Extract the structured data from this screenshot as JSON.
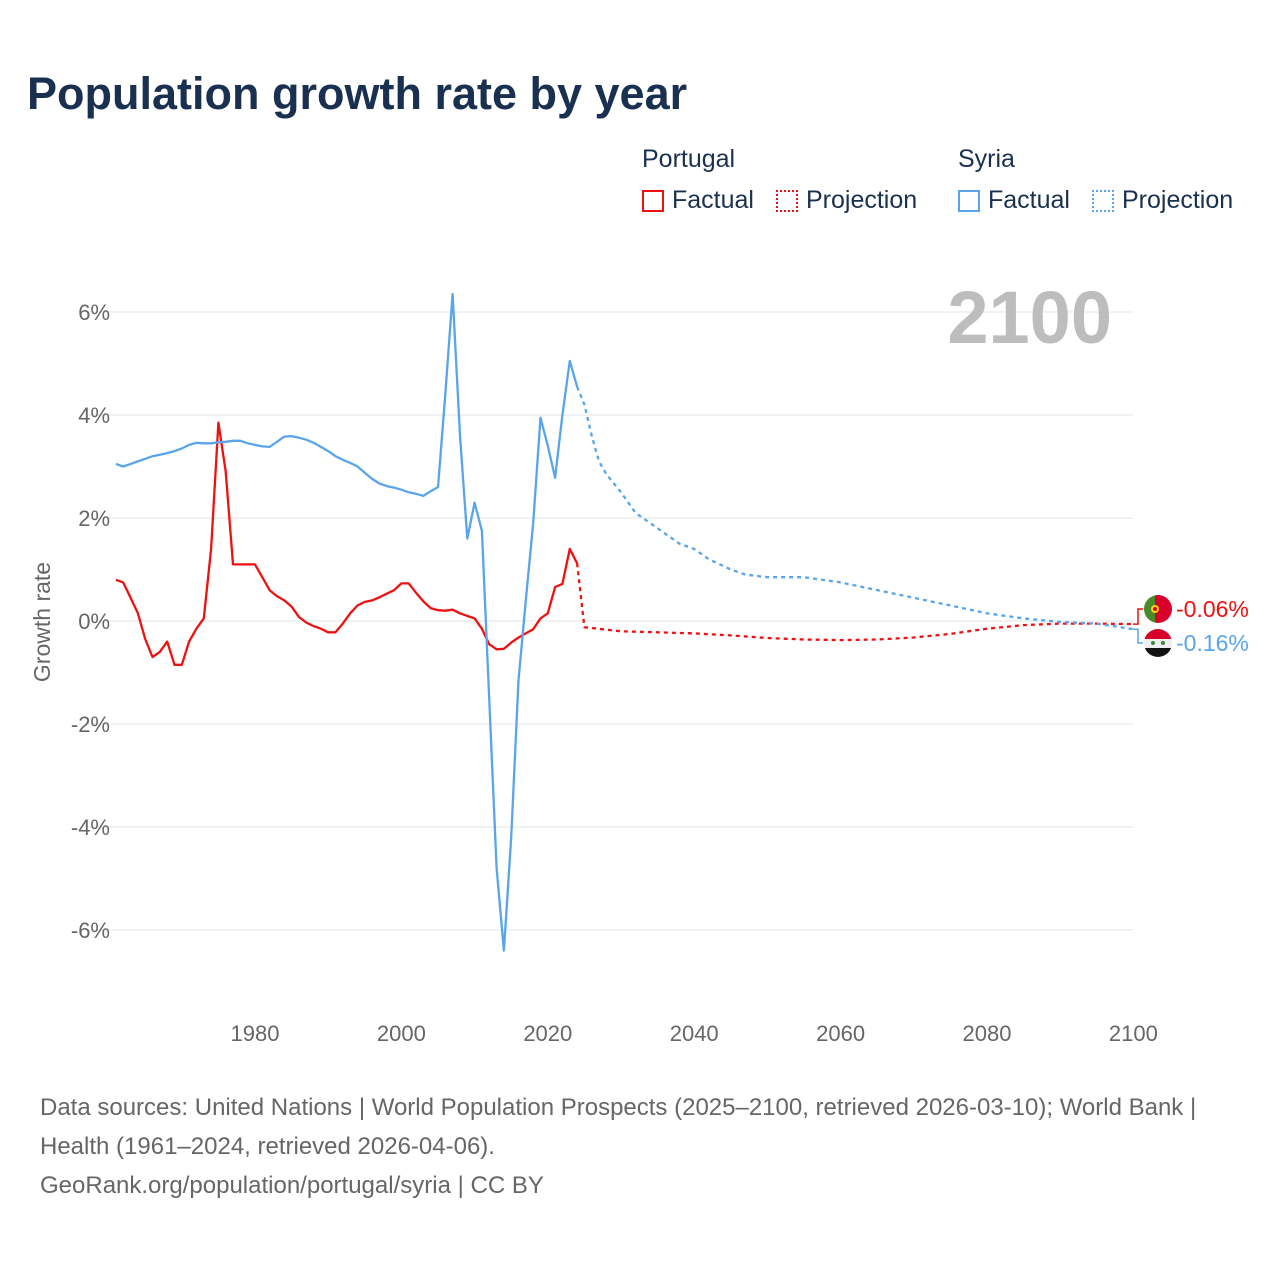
{
  "title": "Population growth rate by year",
  "legend": {
    "groups": [
      {
        "name": "Portugal",
        "color": "#ee1111",
        "items": [
          "Factual",
          "Projection"
        ]
      },
      {
        "name": "Syria",
        "color": "#5aa5ea",
        "items": [
          "Factual",
          "Projection"
        ]
      }
    ]
  },
  "year_display": "2100",
  "footer": {
    "sources": "Data sources: United Nations | World Population Prospects (2025–2100, retrieved 2026-03-10); World Bank | Health (1961–2024, retrieved 2026-04-06).",
    "credit": "GeoRank.org/population/portugal/syria | CC BY"
  },
  "chart_data": {
    "type": "line",
    "title": "Population growth rate by year",
    "xlabel": "",
    "ylabel": "Growth rate",
    "xlim": [
      1961,
      2100
    ],
    "ylim": [
      -7,
      7
    ],
    "xticks": [
      1980,
      2000,
      2020,
      2040,
      2060,
      2080,
      2100
    ],
    "yticks": [
      6,
      4,
      2,
      0,
      -2,
      -4,
      -6
    ],
    "ytick_labels": [
      "6%",
      "4%",
      "2%",
      "0%",
      "-2%",
      "-4%",
      "-6%"
    ],
    "grid": true,
    "legend_position": "top-right",
    "series": [
      {
        "name": "Portugal",
        "kind": "Factual",
        "color": "#ee1111",
        "dashed": false,
        "x": [
          1961,
          1962,
          1963,
          1964,
          1965,
          1966,
          1967,
          1968,
          1969,
          1970,
          1971,
          1972,
          1973,
          1974,
          1975,
          1976,
          1977,
          1978,
          1979,
          1980,
          1981,
          1982,
          1983,
          1984,
          1985,
          1986,
          1987,
          1988,
          1989,
          1990,
          1991,
          1992,
          1993,
          1994,
          1995,
          1996,
          1997,
          1998,
          1999,
          2000,
          2001,
          2002,
          2003,
          2004,
          2005,
          2006,
          2007,
          2008,
          2009,
          2010,
          2011,
          2012,
          2013,
          2014,
          2015,
          2016,
          2017,
          2018,
          2019,
          2020,
          2021,
          2022,
          2023,
          2024
        ],
        "y": [
          0.8,
          0.75,
          0.45,
          0.15,
          -0.35,
          -0.7,
          -0.6,
          -0.4,
          -0.85,
          -0.85,
          -0.4,
          -0.15,
          0.05,
          1.4,
          3.85,
          2.9,
          1.1,
          1.1,
          1.1,
          1.1,
          0.85,
          0.6,
          0.48,
          0.4,
          0.28,
          0.08,
          -0.03,
          -0.1,
          -0.15,
          -0.22,
          -0.22,
          -0.05,
          0.15,
          0.3,
          0.37,
          0.4,
          0.46,
          0.53,
          0.6,
          0.73,
          0.73,
          0.55,
          0.38,
          0.25,
          0.21,
          0.2,
          0.22,
          0.15,
          0.1,
          0.05,
          -0.15,
          -0.45,
          -0.55,
          -0.54,
          -0.42,
          -0.32,
          -0.24,
          -0.16,
          0.05,
          0.15,
          0.66,
          0.72,
          1.4,
          1.12
        ]
      },
      {
        "name": "Portugal",
        "kind": "Projection",
        "color": "#ee1111",
        "dashed": true,
        "x": [
          2024,
          2025,
          2030,
          2035,
          2040,
          2045,
          2050,
          2055,
          2060,
          2065,
          2070,
          2075,
          2080,
          2085,
          2090,
          2095,
          2100
        ],
        "y": [
          1.12,
          -0.12,
          -0.2,
          -0.22,
          -0.24,
          -0.28,
          -0.33,
          -0.36,
          -0.37,
          -0.36,
          -0.32,
          -0.25,
          -0.15,
          -0.08,
          -0.05,
          -0.05,
          -0.06
        ]
      },
      {
        "name": "Syria",
        "kind": "Factual",
        "color": "#5aa5ea",
        "dashed": false,
        "x": [
          1961,
          1962,
          1963,
          1964,
          1965,
          1966,
          1967,
          1968,
          1969,
          1970,
          1971,
          1972,
          1973,
          1974,
          1975,
          1976,
          1977,
          1978,
          1979,
          1980,
          1981,
          1982,
          1983,
          1984,
          1985,
          1986,
          1987,
          1988,
          1989,
          1990,
          1991,
          1992,
          1993,
          1994,
          1995,
          1996,
          1997,
          1998,
          1999,
          2000,
          2001,
          2002,
          2003,
          2004,
          2005,
          2006,
          2007,
          2008,
          2009,
          2010,
          2011,
          2012,
          2013,
          2014,
          2015,
          2016,
          2017,
          2018,
          2019,
          2020,
          2021,
          2022,
          2023,
          2024
        ],
        "y": [
          3.05,
          3.0,
          3.05,
          3.1,
          3.15,
          3.2,
          3.23,
          3.26,
          3.3,
          3.35,
          3.42,
          3.46,
          3.45,
          3.45,
          3.47,
          3.48,
          3.5,
          3.5,
          3.45,
          3.42,
          3.39,
          3.38,
          3.48,
          3.58,
          3.59,
          3.56,
          3.52,
          3.46,
          3.38,
          3.3,
          3.2,
          3.13,
          3.07,
          3.0,
          2.88,
          2.76,
          2.67,
          2.62,
          2.59,
          2.55,
          2.5,
          2.47,
          2.43,
          2.52,
          2.6,
          4.4,
          6.35,
          3.6,
          1.6,
          2.3,
          1.75,
          -1.5,
          -4.8,
          -6.4,
          -4.2,
          -1.15,
          0.4,
          1.9,
          3.95,
          3.4,
          2.78,
          4.0,
          5.05,
          4.55
        ]
      },
      {
        "name": "Syria",
        "kind": "Projection",
        "color": "#5aa5ea",
        "dashed": true,
        "x": [
          2024,
          2025,
          2026,
          2027,
          2028,
          2030,
          2032,
          2035,
          2038,
          2040,
          2042,
          2045,
          2047,
          2050,
          2055,
          2060,
          2065,
          2070,
          2075,
          2080,
          2085,
          2090,
          2095,
          2100
        ],
        "y": [
          4.55,
          4.2,
          3.6,
          3.1,
          2.85,
          2.5,
          2.1,
          1.8,
          1.5,
          1.4,
          1.2,
          1.0,
          0.9,
          0.85,
          0.85,
          0.75,
          0.6,
          0.45,
          0.3,
          0.15,
          0.05,
          -0.02,
          -0.05,
          -0.16
        ]
      }
    ],
    "end_labels": [
      {
        "name": "Portugal",
        "value": "-0.06%",
        "color": "#ee1111"
      },
      {
        "name": "Syria",
        "value": "-0.16%",
        "color": "#5aa5ea"
      }
    ]
  }
}
